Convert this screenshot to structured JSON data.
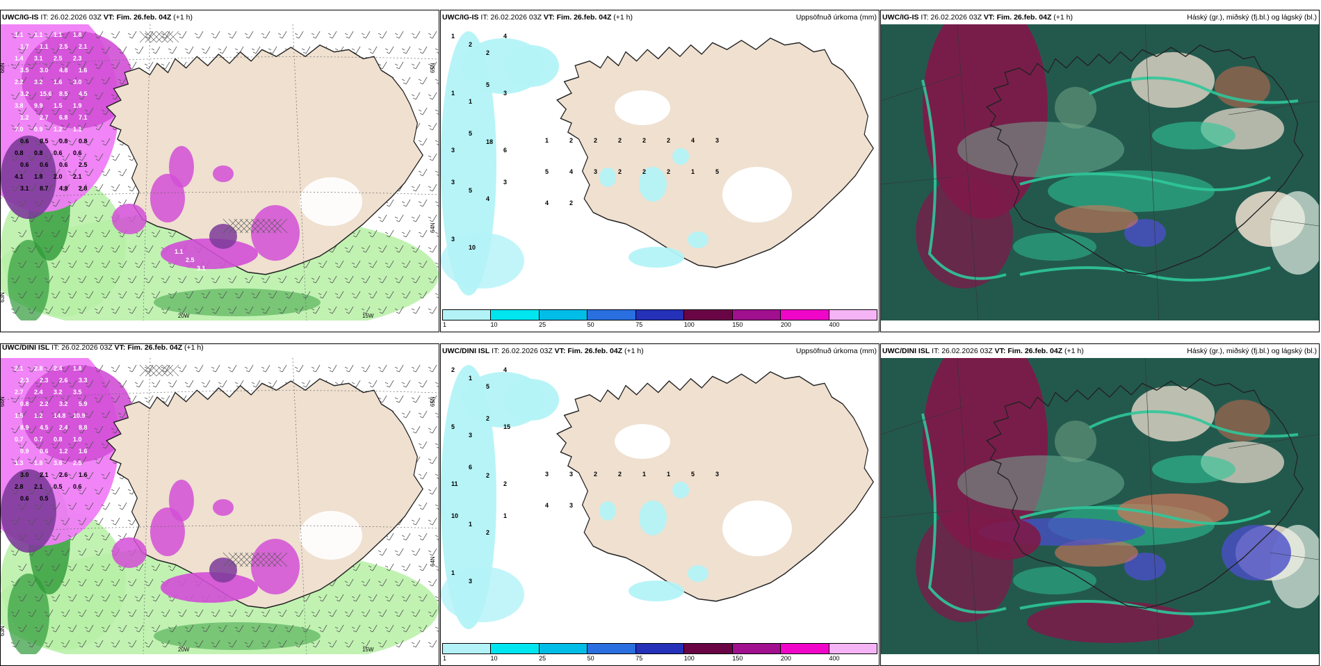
{
  "colors": {
    "land": "#efe0d0",
    "sea": "#ffffff",
    "precip_light": "#b6f0a5",
    "precip_mid": "#2f9a3a",
    "snow_magenta": "#d24fd6",
    "snow_pink": "#f07df7",
    "snow_purple": "#7d3b9a",
    "rain_cyan": "#b3f3f7",
    "cloud_dark": "#23594d",
    "cloud_high": "#7d1a49",
    "cloud_mid_teal": "#2fc69a",
    "cloud_blue": "#4a4fc9"
  },
  "panels": [
    {
      "id": "p1",
      "model": "UWC/IG-IS",
      "it_label": "IT:",
      "it": "26.02.2026 03Z",
      "vt_label": "VT:",
      "vt": "Fim. 26.feb. 04Z",
      "lead": "(+1 h)",
      "right_title": "",
      "axis_labels": [
        "66N",
        "65N",
        "64N",
        "63N",
        "20W",
        "15W"
      ],
      "values": [
        "1.1",
        "1.1",
        "1.1",
        "1.8",
        "1.7",
        "1.1",
        "2.5",
        "2.1",
        "1.4",
        "3.1",
        "2.5",
        "2.3",
        "3.5",
        "3.0",
        "4.8",
        "1.6",
        "2.2",
        "3.2",
        "1.6",
        "3.0",
        "3.2",
        "15.6",
        "8.5",
        "4.5",
        "3.8",
        "9.9",
        "1.5",
        "1.9",
        "1.2",
        "2.7",
        "6.8",
        "7.1",
        "7.0",
        "0.9",
        "1.2",
        "1.1",
        "0.6",
        "0.5",
        "0.8",
        "0.8",
        "0.8",
        "0.8",
        "0.6",
        "0.6",
        "0.6",
        "0.6",
        "0.6",
        "2.5",
        "4.1",
        "1.8",
        "2.0",
        "2.1",
        "3.1",
        "8.7",
        "4.8",
        "2.8",
        "1.1",
        "2.5",
        "3.1"
      ]
    },
    {
      "id": "p2",
      "model": "UWC/IG-IS",
      "it_label": "IT:",
      "it": "26.02.2026 03Z",
      "vt_label": "VT:",
      "vt": "Fim. 26.feb. 04Z",
      "lead": "(+1 h)",
      "right_title": "Uppsöfnuð úrkoma (mm)",
      "values": [
        "1",
        "2",
        "2",
        "4",
        "1",
        "1",
        "5",
        "3",
        "3",
        "5",
        "18",
        "6",
        "3",
        "5",
        "4",
        "3",
        "3",
        "10",
        "1",
        "2",
        "2",
        "2",
        "2",
        "2",
        "4",
        "3",
        "5",
        "4",
        "3",
        "2",
        "2",
        "2",
        "1",
        "5",
        "4",
        "2"
      ],
      "legend": [
        "1",
        "10",
        "25",
        "50",
        "75",
        "100",
        "150",
        "200",
        "400"
      ]
    },
    {
      "id": "p3",
      "model": "UWC/IG-IS",
      "it_label": "IT:",
      "it": "26.02.2026 03Z",
      "vt_label": "VT:",
      "vt": "Fim. 26.feb. 04Z",
      "lead": "(+1 h)",
      "right_title": "Háský (gr.), miðský (fj.bl.) og lágský (bl.)"
    },
    {
      "id": "p4",
      "model": "UWC/DINI ISL",
      "it_label": "IT:",
      "it": "26.02.2026 03Z",
      "vt_label": "VT:",
      "vt": "Fim. 26.feb. 04Z",
      "lead": "(+1 h)",
      "right_title": "",
      "axis_labels": [
        "66N",
        "65N",
        "64N",
        "63N",
        "20W",
        "15W"
      ],
      "values": [
        "2.1",
        "2.8",
        "2.4",
        "1.8",
        "2.3",
        "2.3",
        "2.6",
        "3.3",
        "2.7",
        "2.4",
        "3.2",
        "3.5",
        "0.8",
        "2.2",
        "3.2",
        "5.9",
        "1.5",
        "1.2",
        "14.8",
        "10.9",
        "8.9",
        "4.5",
        "2.4",
        "8.8",
        "0.7",
        "0.7",
        "0.8",
        "1.0",
        "0.9",
        "0.6",
        "1.2",
        "1.6",
        "1.3",
        "1.8",
        "3.6",
        "2.5",
        "3.0",
        "2.1",
        "2.6",
        "1.6",
        "2.8",
        "2.1",
        "0.5",
        "0.6",
        "0.6",
        "0.5"
      ]
    },
    {
      "id": "p5",
      "model": "UWC/DINI ISL",
      "it_label": "IT:",
      "it": "26.02.2026 03Z",
      "vt_label": "VT:",
      "vt": "Fim. 26.feb. 04Z",
      "lead": "(+1 h)",
      "right_title": "Uppsöfnuð úrkoma (mm)",
      "values": [
        "2",
        "1",
        "5",
        "4",
        "5",
        "3",
        "2",
        "15",
        "11",
        "6",
        "2",
        "2",
        "10",
        "1",
        "2",
        "1",
        "1",
        "3",
        "3",
        "3",
        "2",
        "2",
        "1",
        "1",
        "5",
        "3",
        "4",
        "3"
      ],
      "legend": [
        "1",
        "10",
        "25",
        "50",
        "75",
        "100",
        "150",
        "200",
        "400"
      ]
    },
    {
      "id": "p6",
      "model": "UWC/DINI ISL",
      "it_label": "IT:",
      "it": "26.02.2026 03Z",
      "vt_label": "VT:",
      "vt": "Fim. 26.feb. 04Z",
      "lead": "(+1 h)",
      "right_title": "Háský (gr.), miðský (fj.bl.) og lágský (bl.)"
    }
  ],
  "legend_colors": [
    "#b3f3f7",
    "#00e6f0",
    "#00bde8",
    "#2a6fe0",
    "#2431b8",
    "#6a0545",
    "#a0108f",
    "#f006c8",
    "#f5b4f5"
  ]
}
